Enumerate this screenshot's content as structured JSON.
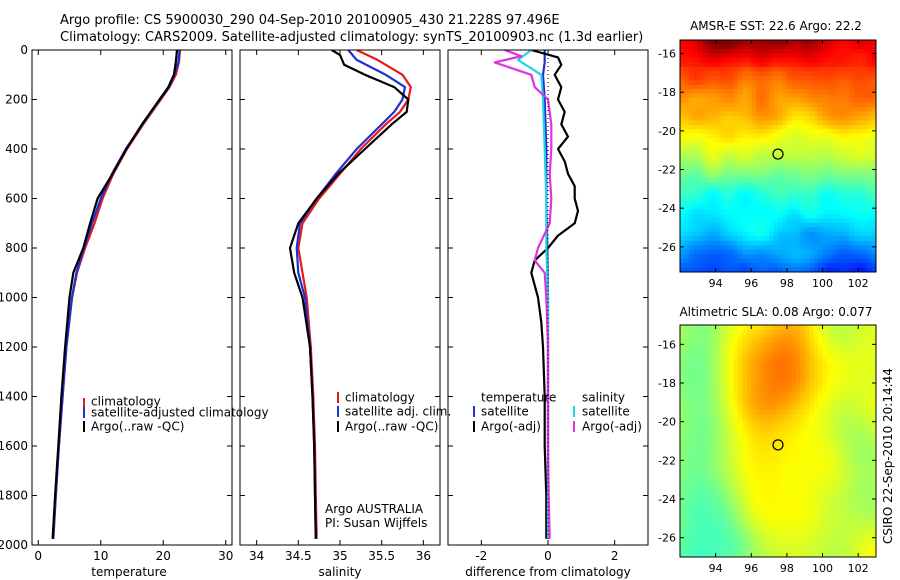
{
  "header": {
    "line1": "Argo profile: CS 5900030_290 04-Sep-2010 20100905_430 21.228S 97.496E",
    "line2": "Climatology: CARS2009. Satellite-adjusted climatology: synTS_20100903.nc (1.3d earlier)"
  },
  "colors": {
    "climatology": "#e41a1c",
    "satellite_adjusted": "#1f2fd6",
    "argo": "#000000",
    "sat_temperature": "#1f2fd6",
    "sat_salinity": "#22d3e6",
    "argo_salinity_adj": "#e033e0"
  },
  "credit": {
    "argo_country": "Argo AUSTRALIA",
    "pi": "PI: Susan Wijffels",
    "stamp": "CSIRO 22-Sep-2010 20:14:44"
  },
  "chart_data": [
    {
      "type": "line",
      "id": "temperature",
      "xlabel": "temperature",
      "xlim": [
        -1,
        31
      ],
      "ylim": [
        2000,
        0
      ],
      "xticks": [
        0,
        10,
        20,
        30
      ],
      "yticks": [
        0,
        200,
        400,
        600,
        800,
        1000,
        1200,
        1400,
        1600,
        1800,
        2000
      ],
      "legend": [
        "climatology",
        "satellite-adjusted climatology",
        "Argo(..raw -QC)"
      ],
      "series": [
        {
          "name": "climatology",
          "color": "#e41a1c",
          "depth": [
            0,
            50,
            100,
            150,
            200,
            300,
            400,
            500,
            600,
            700,
            800,
            900,
            1000,
            1200,
            1400,
            1600,
            1800,
            1975
          ],
          "values": [
            22.7,
            22.5,
            22.0,
            21.0,
            19.6,
            16.8,
            14.2,
            12.0,
            10.3,
            9.0,
            7.5,
            6.2,
            5.4,
            4.5,
            3.9,
            3.3,
            2.8,
            2.4
          ]
        },
        {
          "name": "satellite-adjusted climatology",
          "color": "#1f2fd6",
          "depth": [
            0,
            50,
            100,
            150,
            200,
            300,
            400,
            500,
            600,
            700,
            800,
            900,
            1000,
            1200,
            1400,
            1600,
            1800,
            1975
          ],
          "values": [
            22.6,
            22.4,
            21.8,
            20.9,
            19.5,
            16.7,
            14.0,
            11.8,
            10.0,
            8.6,
            7.3,
            6.1,
            5.4,
            4.5,
            3.9,
            3.3,
            2.8,
            2.4
          ]
        },
        {
          "name": "Argo(..raw -QC)",
          "color": "#000000",
          "depth": [
            0,
            50,
            100,
            150,
            200,
            300,
            400,
            500,
            600,
            700,
            800,
            900,
            1000,
            1200,
            1400,
            1600,
            1800,
            1975
          ],
          "values": [
            22.2,
            22.0,
            21.7,
            20.8,
            19.4,
            16.6,
            14.1,
            11.9,
            9.5,
            8.3,
            7.2,
            5.6,
            5.0,
            4.3,
            3.7,
            3.2,
            2.7,
            2.3
          ]
        }
      ]
    },
    {
      "type": "line",
      "id": "salinity",
      "xlabel": "salinity",
      "xlim": [
        33.8,
        36.2
      ],
      "ylim": [
        2000,
        0
      ],
      "xticks": [
        34,
        34.5,
        35,
        35.5,
        36
      ],
      "xticklabels": [
        "34",
        "34.5",
        "35",
        "35.5",
        "36"
      ],
      "legend": [
        "climatology",
        "satellite adj. clim.",
        "Argo(..raw -QC)"
      ],
      "series": [
        {
          "name": "climatology",
          "color": "#e41a1c",
          "depth": [
            0,
            40,
            100,
            150,
            200,
            250,
            300,
            400,
            500,
            600,
            700,
            800,
            900,
            1000,
            1200,
            1400,
            1600,
            1800,
            1975
          ],
          "values": [
            35.2,
            35.45,
            35.75,
            35.85,
            35.82,
            35.72,
            35.55,
            35.25,
            35.0,
            34.75,
            34.55,
            34.5,
            34.55,
            34.6,
            34.65,
            34.68,
            34.7,
            34.71,
            34.72
          ]
        },
        {
          "name": "satellite adj. clim.",
          "color": "#1f2fd6",
          "depth": [
            0,
            40,
            100,
            150,
            200,
            250,
            300,
            400,
            500,
            600,
            700,
            800,
            900,
            1000,
            1200,
            1400,
            1600,
            1800,
            1975
          ],
          "values": [
            35.1,
            35.2,
            35.55,
            35.78,
            35.75,
            35.65,
            35.5,
            35.2,
            34.95,
            34.72,
            34.52,
            34.48,
            34.5,
            34.58,
            34.64,
            34.67,
            34.69,
            34.7,
            34.71
          ]
        },
        {
          "name": "Argo(..raw -QC)",
          "color": "#000000",
          "depth": [
            0,
            20,
            60,
            100,
            150,
            200,
            250,
            300,
            400,
            500,
            600,
            700,
            800,
            900,
            1000,
            1200,
            1400,
            1600,
            1800,
            1975
          ],
          "values": [
            34.9,
            35.0,
            35.05,
            35.3,
            35.65,
            35.82,
            35.8,
            35.62,
            35.3,
            34.98,
            34.72,
            34.5,
            34.4,
            34.45,
            34.55,
            34.64,
            34.67,
            34.69,
            34.7,
            34.71
          ]
        }
      ]
    },
    {
      "type": "line",
      "id": "difference",
      "xlabel": "difference from climatology",
      "xlim": [
        -3,
        3
      ],
      "ylim": [
        2000,
        0
      ],
      "xticks": [
        -2,
        0,
        2
      ],
      "xticklabels": [
        "-2",
        "0",
        "2"
      ],
      "legend_temperature": {
        "title": "temperature",
        "items": [
          "satellite",
          "Argo(-adj)"
        ]
      },
      "legend_salinity": {
        "title": "salinity",
        "items": [
          "satellite",
          "Argo(-adj)"
        ]
      },
      "series": [
        {
          "name": "temperature satellite",
          "color": "#1f2fd6",
          "depth": [
            0,
            50,
            100,
            200,
            400,
            600,
            800,
            1000,
            1975
          ],
          "values": [
            -0.1,
            -0.1,
            -0.15,
            -0.1,
            -0.05,
            -0.05,
            -0.02,
            0.0,
            0.0
          ]
        },
        {
          "name": "temperature Argo(-adj)",
          "color": "#000000",
          "depth": [
            0,
            30,
            60,
            100,
            150,
            200,
            250,
            300,
            350,
            400,
            450,
            500,
            550,
            600,
            650,
            700,
            750,
            800,
            850,
            900,
            1000,
            1100,
            1200,
            1400,
            1600,
            1800,
            1975
          ],
          "values": [
            -0.5,
            0.3,
            0.4,
            0.2,
            0.4,
            0.3,
            0.5,
            0.4,
            0.6,
            0.3,
            0.5,
            0.6,
            0.8,
            0.8,
            0.9,
            0.8,
            0.3,
            0.0,
            -0.4,
            -0.5,
            -0.3,
            -0.2,
            -0.15,
            -0.1,
            -0.1,
            -0.05,
            -0.05
          ]
        },
        {
          "name": "salinity satellite",
          "color": "#22d3e6",
          "depth": [
            0,
            40,
            100,
            200,
            400,
            600,
            800,
            1000,
            1975
          ],
          "values": [
            -0.5,
            -0.9,
            -0.2,
            -0.15,
            -0.1,
            -0.05,
            -0.05,
            0.0,
            0.0
          ]
        },
        {
          "name": "salinity Argo(-adj)",
          "color": "#e033e0",
          "depth": [
            0,
            25,
            50,
            100,
            150,
            200,
            300,
            400,
            500,
            600,
            700,
            800,
            850,
            900,
            1000,
            1200,
            1400,
            1600,
            1800,
            1975
          ],
          "values": [
            -1.3,
            -0.8,
            -1.6,
            -0.5,
            -0.4,
            0.0,
            0.1,
            0.1,
            0.05,
            0.1,
            0.05,
            -0.3,
            -0.4,
            -0.1,
            -0.05,
            0.0,
            0.0,
            0.0,
            0.02,
            0.05
          ]
        }
      ]
    },
    {
      "type": "heatmap",
      "id": "sst",
      "title": "AMSR-E SST: 22.6 Argo: 22.2",
      "xlim": [
        92,
        103
      ],
      "ylim": [
        -27.3,
        -15.3
      ],
      "xticks": [
        94,
        96,
        98,
        100,
        102
      ],
      "yticks": [
        -16,
        -18,
        -20,
        -22,
        -24,
        -26
      ],
      "marker": {
        "lon": 97.5,
        "lat": -21.2
      },
      "colormap": "jet"
    },
    {
      "type": "heatmap",
      "id": "sla",
      "title": "Altimetric SLA: 0.08 Argo: 0.077",
      "xlim": [
        92,
        103
      ],
      "ylim": [
        -27,
        -15
      ],
      "xticks": [
        94,
        96,
        98,
        100,
        102
      ],
      "yticks": [
        -16,
        -18,
        -20,
        -22,
        -24,
        -26
      ],
      "marker": {
        "lon": 97.5,
        "lat": -21.2
      },
      "colormap": "jet"
    }
  ]
}
